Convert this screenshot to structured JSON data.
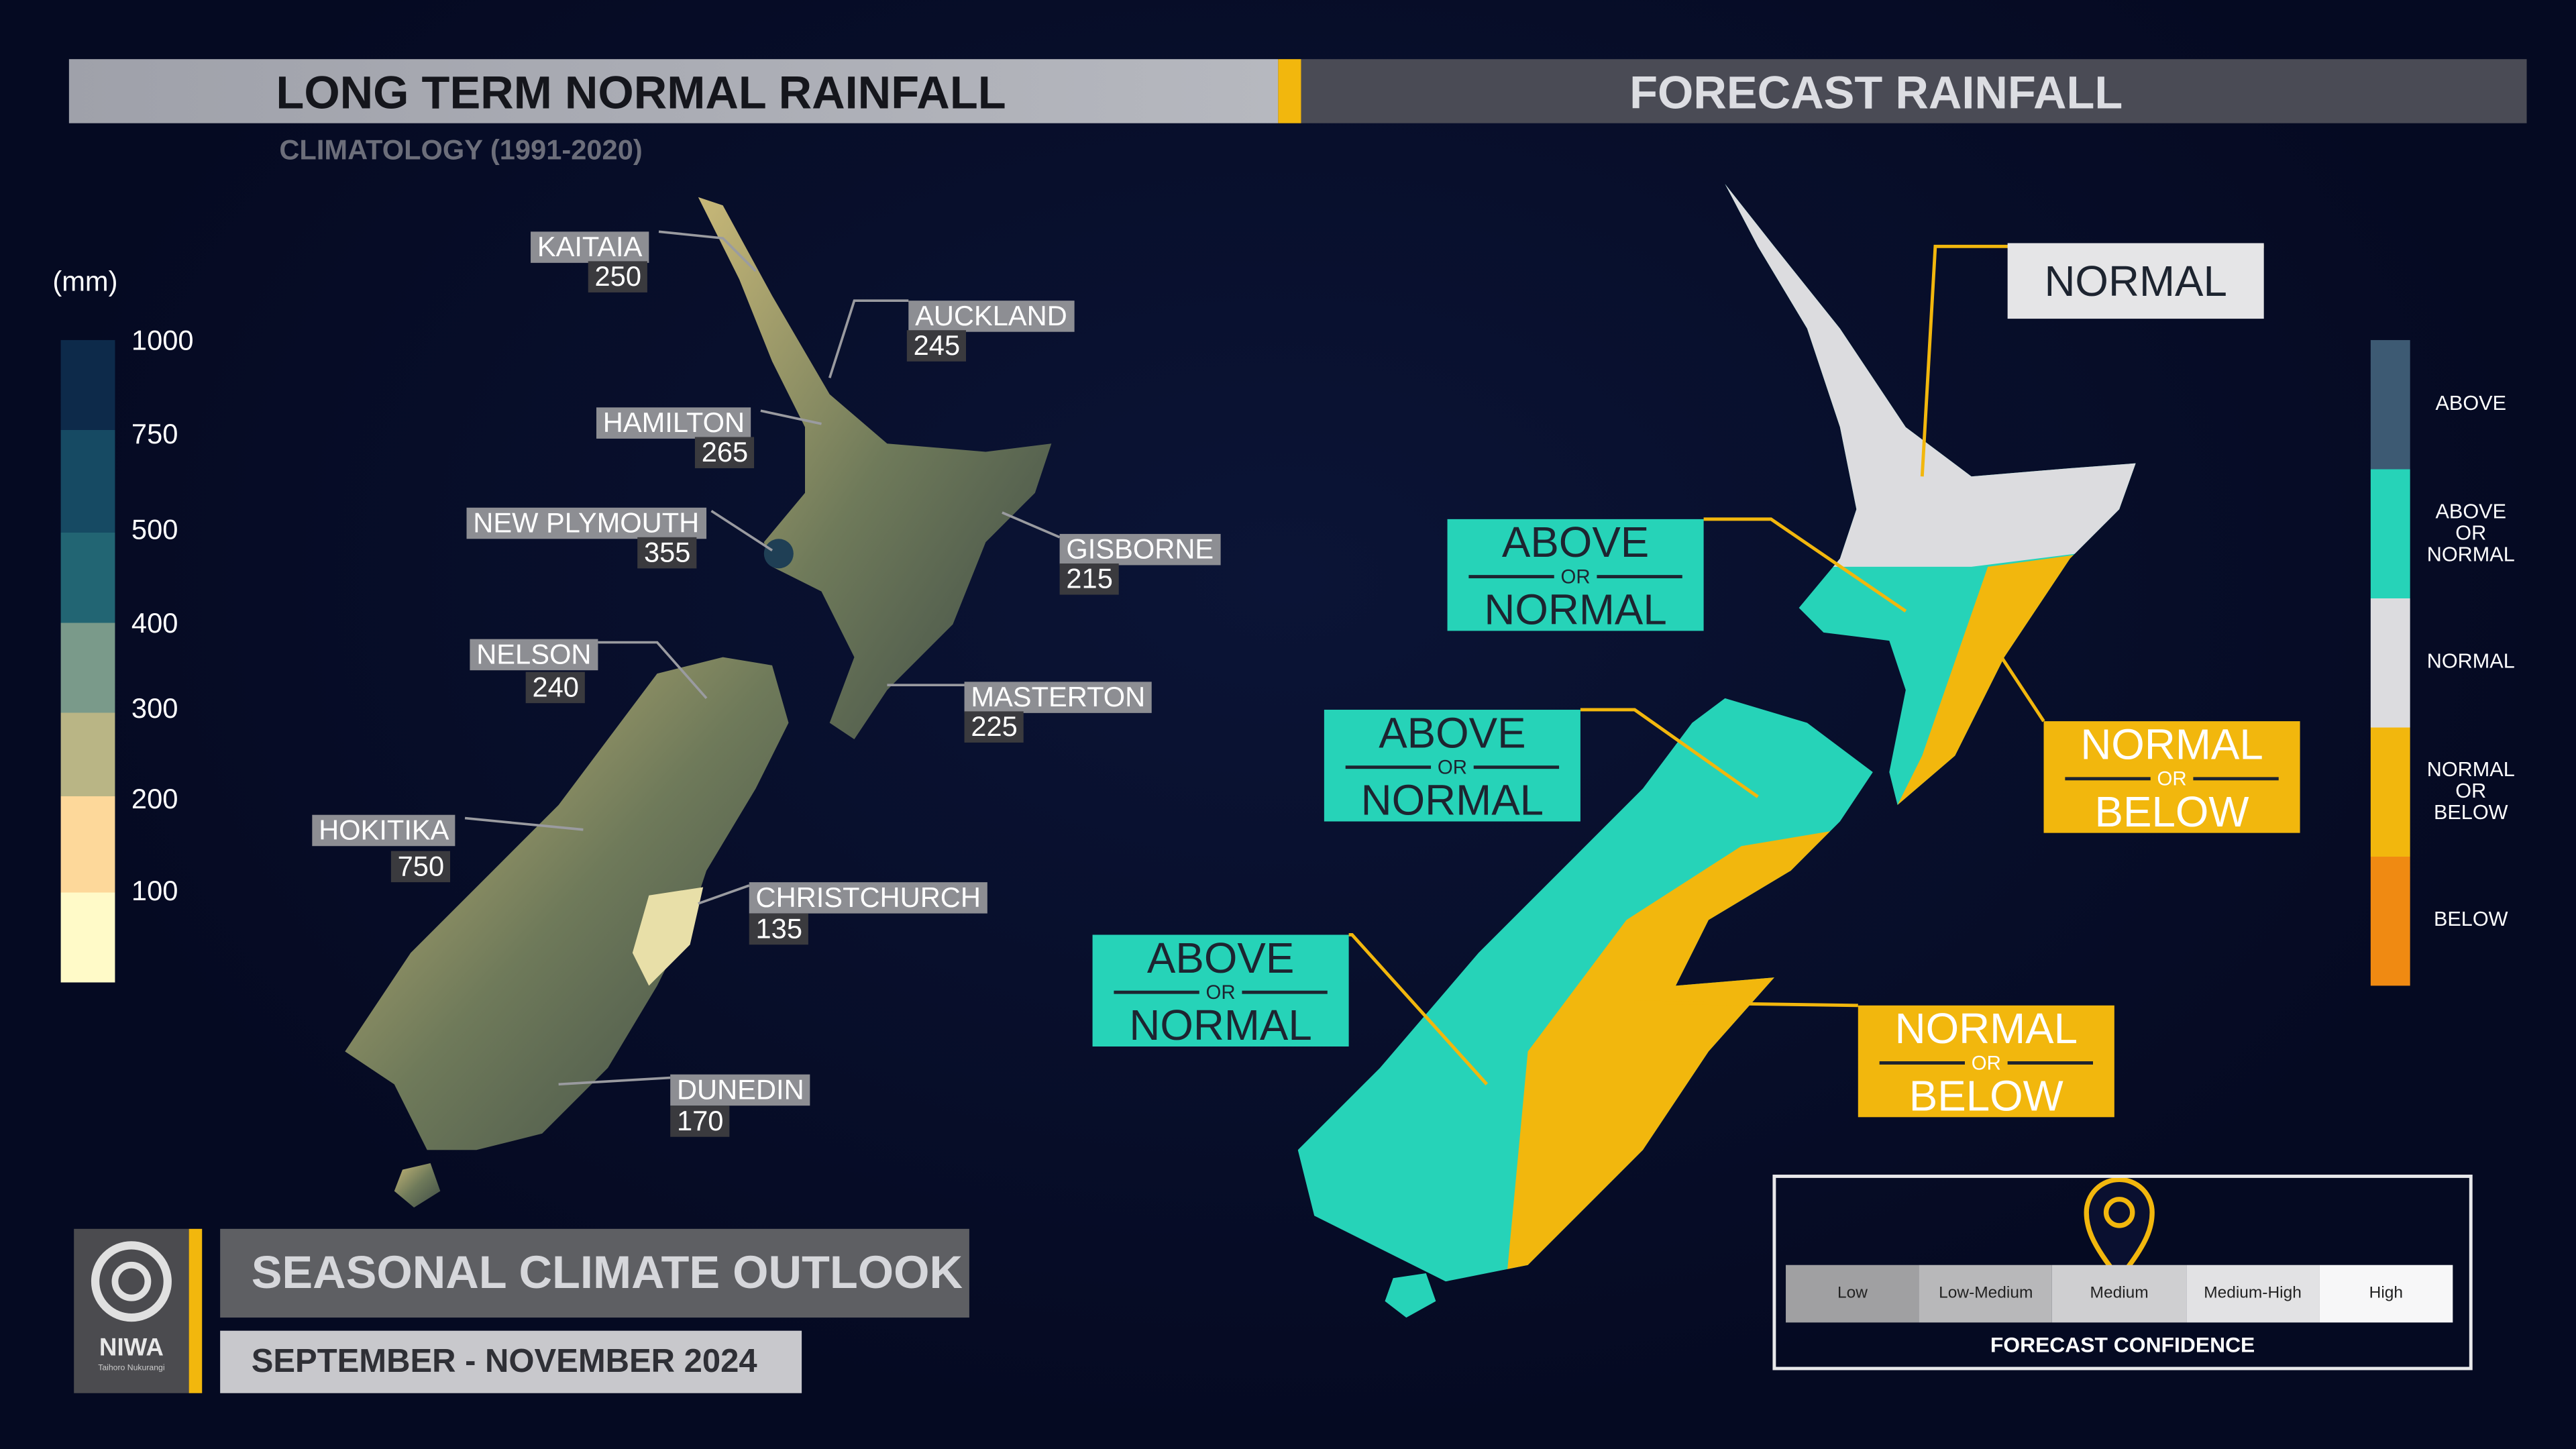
{
  "left_panel": {
    "title": "LONG TERM NORMAL RAINFALL",
    "subtitle": "CLIMATOLOGY (1991-2020)",
    "legend": {
      "unit": "(mm)",
      "ticks": [
        1000,
        750,
        500,
        400,
        300,
        200,
        100
      ]
    },
    "locations": [
      {
        "name": "KAITAIA",
        "value": 250
      },
      {
        "name": "AUCKLAND",
        "value": 245
      },
      {
        "name": "HAMILTON",
        "value": 265
      },
      {
        "name": "NEW PLYMOUTH",
        "value": 355
      },
      {
        "name": "GISBORNE",
        "value": 215
      },
      {
        "name": "NELSON",
        "value": 240
      },
      {
        "name": "MASTERTON",
        "value": 225
      },
      {
        "name": "HOKITIKA",
        "value": 750
      },
      {
        "name": "CHRISTCHURCH",
        "value": 135
      },
      {
        "name": "DUNEDIN",
        "value": 170
      }
    ]
  },
  "right_panel": {
    "title": "FORECAST RAINFALL",
    "regions": [
      {
        "top": "NORMAL"
      },
      {
        "top": "ABOVE",
        "middle": "OR",
        "bottom": "NORMAL"
      },
      {
        "top": "ABOVE",
        "middle": "OR",
        "bottom": "NORMAL"
      },
      {
        "top": "ABOVE",
        "middle": "OR",
        "bottom": "NORMAL"
      },
      {
        "top": "NORMAL",
        "middle": "OR",
        "bottom": "BELOW"
      },
      {
        "top": "NORMAL",
        "middle": "OR",
        "bottom": "BELOW"
      }
    ],
    "legend": [
      "ABOVE",
      "ABOVE OR NORMAL",
      "NORMAL",
      "NORMAL OR BELOW",
      "BELOW"
    ],
    "confidence": {
      "levels": [
        "Low",
        "Low-Medium",
        "Medium",
        "Medium-High",
        "High"
      ],
      "selected": "Medium",
      "title": "FORECAST CONFIDENCE"
    }
  },
  "footer": {
    "logo": "NIWA",
    "logo_subtitle": "Taihoro Nukurangi",
    "title": "SEASONAL CLIMATE OUTLOOK",
    "period": "SEPTEMBER - NOVEMBER 2024"
  }
}
